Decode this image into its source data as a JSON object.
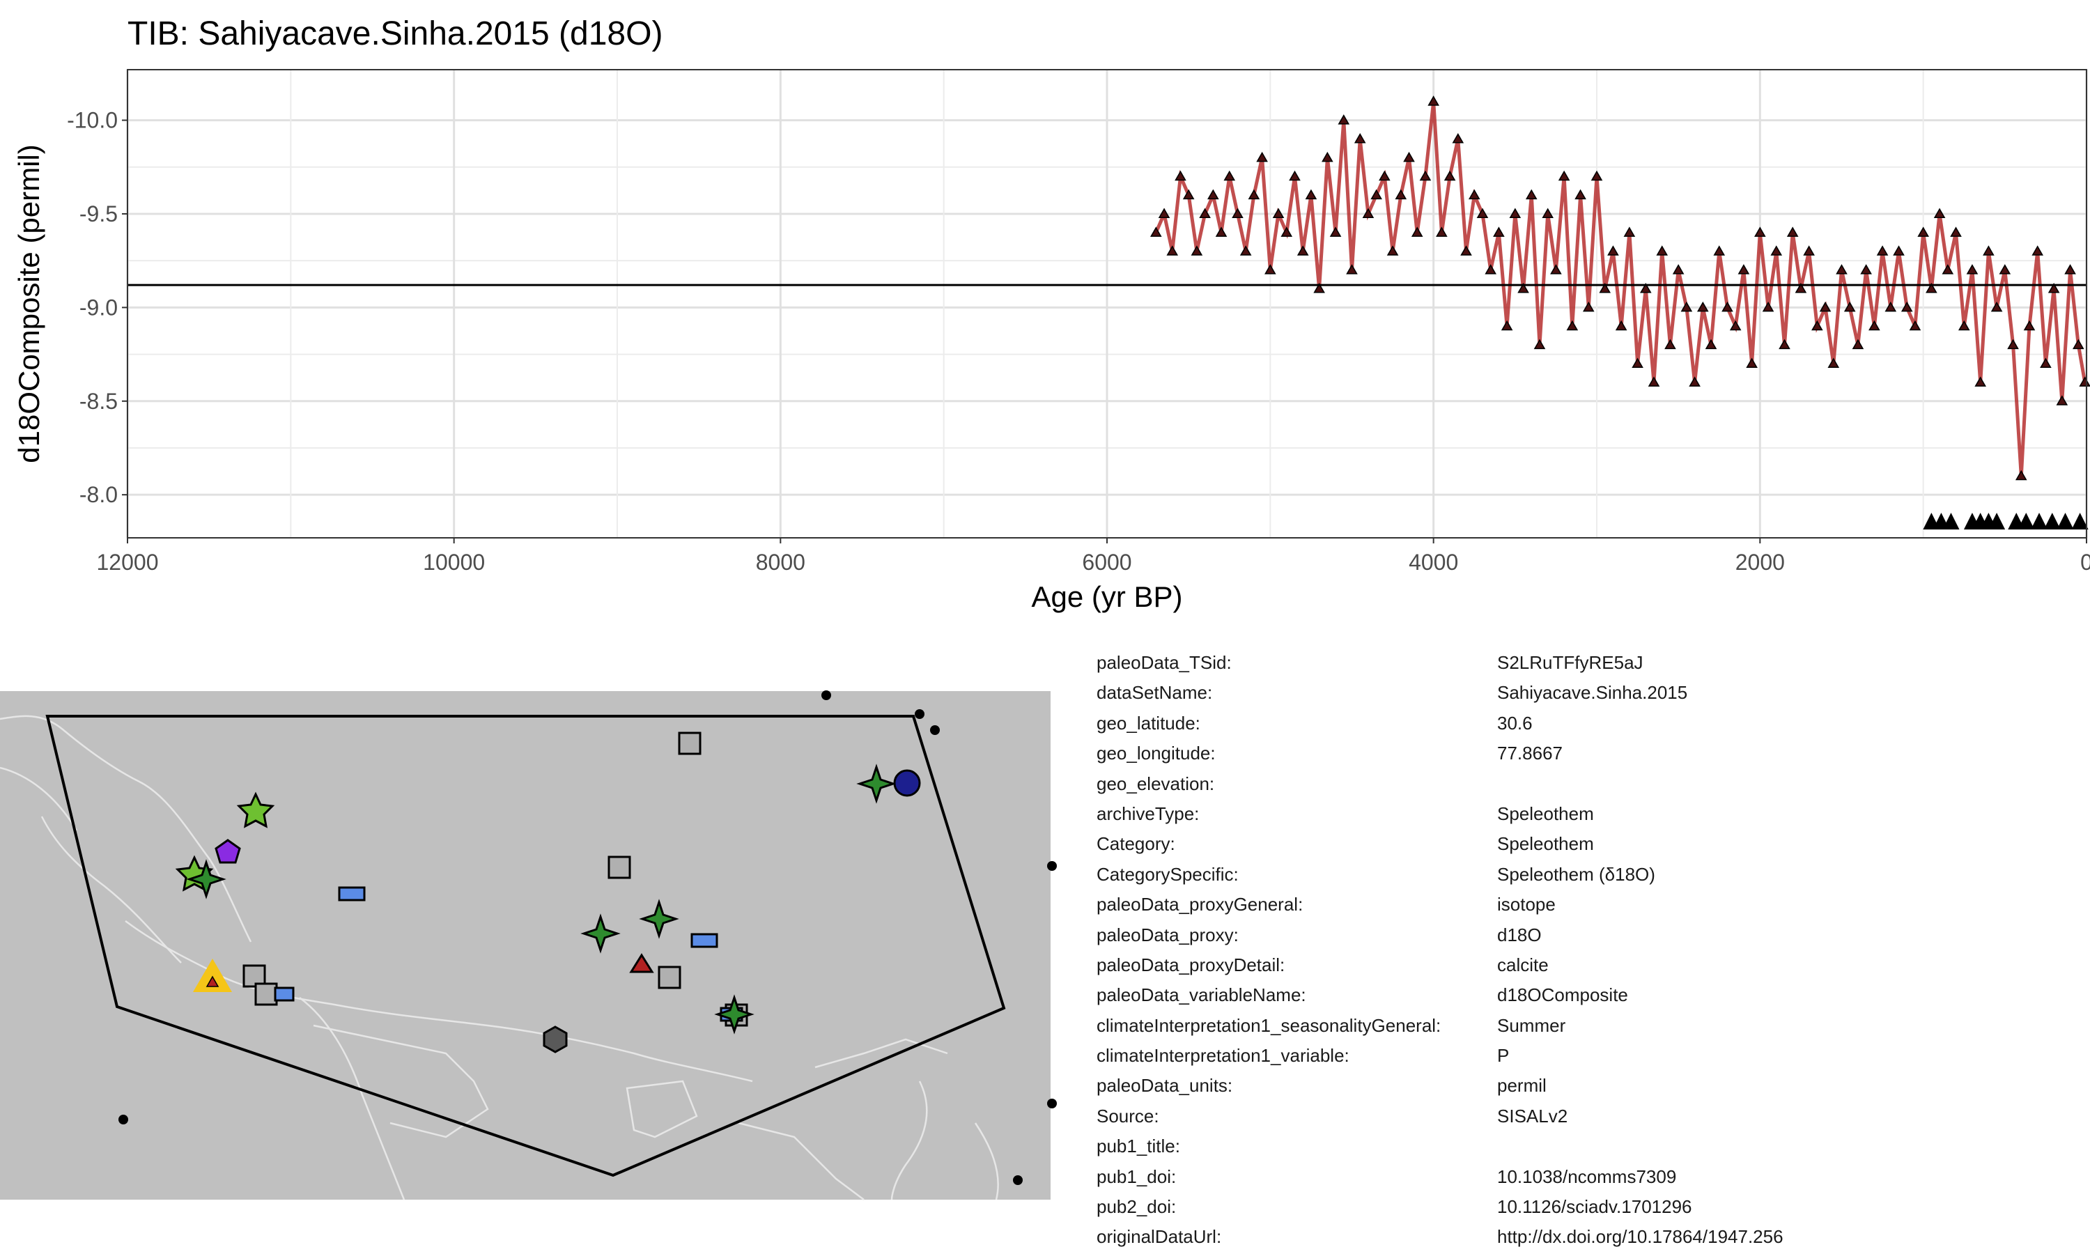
{
  "title": "TIB: Sahiyacave.Sinha.2015 (d18O)",
  "chart_data": {
    "type": "line",
    "title": "TIB: Sahiyacave.Sinha.2015 (d18O)",
    "xlabel": "Age (yr BP)",
    "ylabel": "d18OComposite (permil)",
    "x_reversed": true,
    "y_reversed": true,
    "xlim": [
      12000,
      0
    ],
    "ylim": [
      -7.77,
      -10.27
    ],
    "x_ticks": [
      12000,
      10000,
      8000,
      6000,
      4000,
      2000,
      0
    ],
    "x_tick_labels": [
      "12000",
      "10000",
      "8000",
      "6000",
      "4000",
      "2000",
      "0"
    ],
    "y_ticks": [
      -10.0,
      -9.5,
      -9.0,
      -8.5,
      -8.0
    ],
    "y_tick_labels": [
      "-10.0",
      "-9.5",
      "-9.0",
      "-8.5",
      "-8.0"
    ],
    "grid": true,
    "mean_line": -9.12,
    "marker": "triangle",
    "line_color": "#b22222",
    "marker_color": "#4a1010",
    "series": [
      {
        "x": [
          5700,
          5650,
          5600,
          5550,
          5500,
          5450,
          5400,
          5350,
          5300,
          5250,
          5200,
          5150,
          5100,
          5050,
          5000,
          4950,
          4900,
          4850,
          4800,
          4750,
          4700,
          4650,
          4600,
          4550,
          4500,
          4450,
          4400,
          4350,
          4300,
          4250,
          4200,
          4150,
          4100,
          4050,
          4000,
          3950,
          3900,
          3850,
          3800,
          3750,
          3700,
          3650,
          3600,
          3550,
          3500,
          3450,
          3400,
          3350,
          3300,
          3250,
          3200,
          3150,
          3100,
          3050,
          3000,
          2950,
          2900,
          2850,
          2800,
          2750,
          2700,
          2650,
          2600,
          2550,
          2500,
          2450,
          2400,
          2350,
          2300,
          2250,
          2200,
          2150,
          2100,
          2050,
          2000,
          1950,
          1900,
          1850,
          1800,
          1750,
          1700,
          1650,
          1600,
          1550,
          1500,
          1450,
          1400,
          1350,
          1300,
          1250,
          1200,
          1150,
          1100,
          1050,
          1000,
          950,
          900,
          850,
          800,
          750,
          700,
          650,
          600,
          550,
          500,
          450,
          400,
          350,
          300,
          250,
          200,
          150,
          100,
          50,
          10
        ],
        "y": [
          -9.4,
          -9.5,
          -9.3,
          -9.7,
          -9.6,
          -9.3,
          -9.5,
          -9.6,
          -9.4,
          -9.7,
          -9.5,
          -9.3,
          -9.6,
          -9.8,
          -9.2,
          -9.5,
          -9.4,
          -9.7,
          -9.3,
          -9.6,
          -9.1,
          -9.8,
          -9.4,
          -10.0,
          -9.2,
          -9.9,
          -9.5,
          -9.6,
          -9.7,
          -9.3,
          -9.6,
          -9.8,
          -9.4,
          -9.7,
          -10.1,
          -9.4,
          -9.7,
          -9.9,
          -9.3,
          -9.6,
          -9.5,
          -9.2,
          -9.4,
          -8.9,
          -9.5,
          -9.1,
          -9.6,
          -8.8,
          -9.5,
          -9.2,
          -9.7,
          -8.9,
          -9.6,
          -9.0,
          -9.7,
          -9.1,
          -9.3,
          -8.9,
          -9.4,
          -8.7,
          -9.1,
          -8.6,
          -9.3,
          -8.8,
          -9.2,
          -9.0,
          -8.6,
          -9.0,
          -8.8,
          -9.3,
          -9.0,
          -8.9,
          -9.2,
          -8.7,
          -9.4,
          -9.0,
          -9.3,
          -8.8,
          -9.4,
          -9.1,
          -9.3,
          -8.9,
          -9.0,
          -8.7,
          -9.2,
          -9.0,
          -8.8,
          -9.2,
          -8.9,
          -9.3,
          -9.0,
          -9.3,
          -9.0,
          -8.9,
          -9.4,
          -9.1,
          -9.5,
          -9.2,
          -9.4,
          -8.9,
          -9.2,
          -8.6,
          -9.3,
          -9.0,
          -9.2,
          -8.8,
          -8.1,
          -8.9,
          -9.3,
          -8.7,
          -9.1,
          -8.5,
          -9.2,
          -8.8,
          -8.6
        ]
      }
    ],
    "chron_control_ages": [
      950,
      890,
      830,
      700,
      650,
      600,
      550,
      430,
      370,
      290,
      210,
      130,
      40
    ]
  },
  "map": {
    "shapes": [
      {
        "shape": "star",
        "color": "#6ec031"
      },
      {
        "shape": "pentagon",
        "color": "#8a2be2"
      },
      {
        "shape": "star",
        "color": "#6ec031"
      },
      {
        "shape": "four-point-star",
        "color": "#2e8b2e"
      },
      {
        "shape": "rectangle",
        "color": "#5b8ce6"
      },
      {
        "shape": "triangle-selected",
        "color": "#f5c518"
      },
      {
        "shape": "square",
        "color": "#b0b0b0"
      },
      {
        "shape": "square",
        "color": "#b0b0b0"
      },
      {
        "shape": "rectangle",
        "color": "#5b8ce6"
      },
      {
        "shape": "square",
        "color": "#b0b0b0"
      },
      {
        "shape": "square",
        "color": "#b0b0b0"
      },
      {
        "shape": "four-point-star",
        "color": "#2e8b2e"
      },
      {
        "shape": "four-point-star",
        "color": "#2e8b2e"
      },
      {
        "shape": "rectangle",
        "color": "#5b8ce6"
      },
      {
        "shape": "triangle",
        "color": "#b22222"
      },
      {
        "shape": "square",
        "color": "#b0b0b0"
      },
      {
        "shape": "hexagon",
        "color": "#595959"
      },
      {
        "shape": "square",
        "color": "#b0b0b0"
      },
      {
        "shape": "rectangle",
        "color": "#5b8ce6"
      },
      {
        "shape": "four-point-star",
        "color": "#2e8b2e"
      },
      {
        "shape": "four-point-star",
        "color": "#2e8b2e"
      },
      {
        "shape": "circle",
        "color": "#1c1f8f"
      }
    ]
  },
  "metadata": [
    {
      "key": "paleoData_TSid:",
      "value": "S2LRuTFfyRE5aJ"
    },
    {
      "key": "dataSetName:",
      "value": "Sahiyacave.Sinha.2015"
    },
    {
      "key": "geo_latitude:",
      "value": "30.6"
    },
    {
      "key": "geo_longitude:",
      "value": "77.8667"
    },
    {
      "key": "geo_elevation:",
      "value": ""
    },
    {
      "key": "archiveType:",
      "value": "Speleothem"
    },
    {
      "key": "Category:",
      "value": "Speleothem"
    },
    {
      "key": "CategorySpecific:",
      "value": "Speleothem (δ18O)"
    },
    {
      "key": "paleoData_proxyGeneral:",
      "value": "isotope"
    },
    {
      "key": "paleoData_proxy:",
      "value": "d18O"
    },
    {
      "key": "paleoData_proxyDetail:",
      "value": "calcite"
    },
    {
      "key": "paleoData_variableName:",
      "value": "d18OComposite"
    },
    {
      "key": "climateInterpretation1_seasonalityGeneral:",
      "value": "Summer"
    },
    {
      "key": "climateInterpretation1_variable:",
      "value": "P"
    },
    {
      "key": "paleoData_units:",
      "value": "permil"
    },
    {
      "key": "Source:",
      "value": "SISALv2"
    },
    {
      "key": "pub1_title:",
      "value": ""
    },
    {
      "key": "pub1_doi:",
      "value": "10.1038/ncomms7309"
    },
    {
      "key": "pub2_doi:",
      "value": "10.1126/sciadv.1701296"
    },
    {
      "key": "originalDataUrl:",
      "value": "http://dx.doi.org/10.17864/1947.256"
    }
  ]
}
